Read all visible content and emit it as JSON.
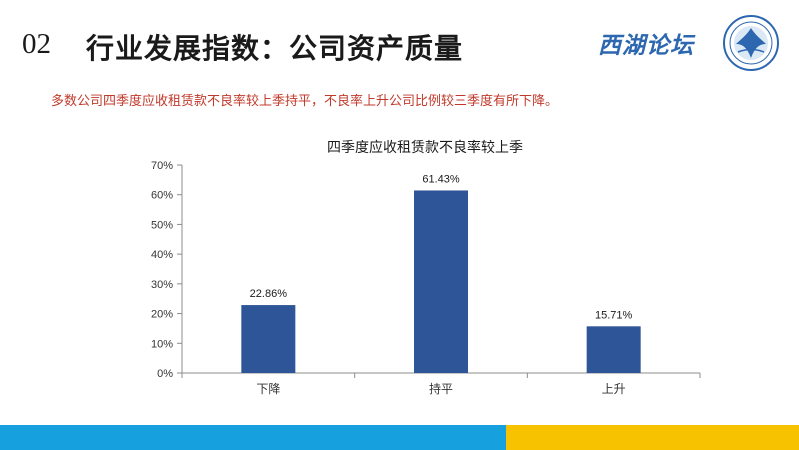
{
  "header": {
    "number": "02",
    "title": "行业发展指数：公司资产质量",
    "brand": "西湖论坛"
  },
  "subtitle": "多数公司四季度应收租赁款不良率较上季持平，不良率上升公司比例较三季度有所下降。",
  "colors": {
    "bar": "#2e5597",
    "accent_blue": "#16a0de",
    "accent_yellow": "#f7c200",
    "subtitle": "#c0392b",
    "brand": "#2d67b0"
  },
  "chart_data": {
    "type": "bar",
    "title": "四季度应收租赁款不良率较上季",
    "categories": [
      "下降",
      "持平",
      "上升"
    ],
    "values": [
      22.86,
      61.43,
      15.71
    ],
    "value_labels": [
      "22.86%",
      "61.43%",
      "15.71%"
    ],
    "ylim": [
      0,
      70
    ],
    "yticks": [
      "0%",
      "10%",
      "20%",
      "30%",
      "40%",
      "50%",
      "60%",
      "70%"
    ],
    "xlabel": "",
    "ylabel": "",
    "grid": false,
    "legend": false
  }
}
